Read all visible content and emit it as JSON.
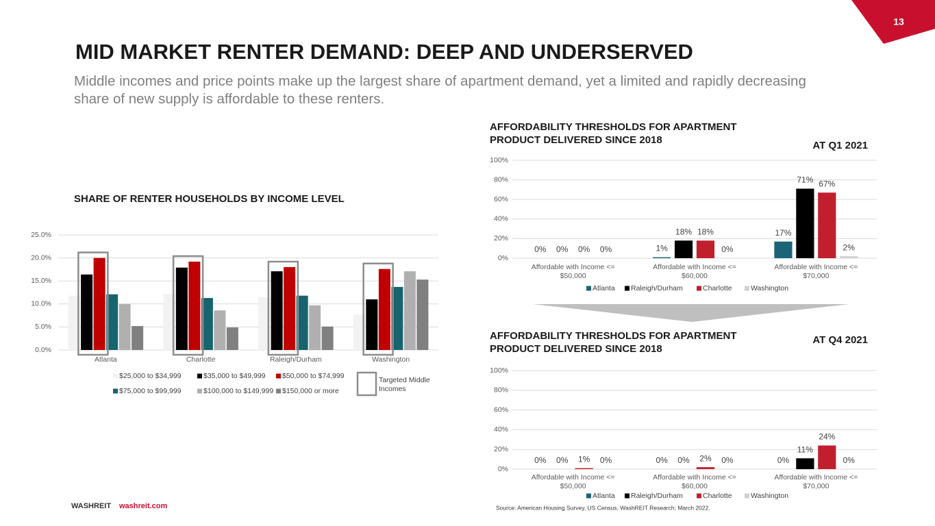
{
  "page_number": "13",
  "title": "MID MARKET RENTER DEMAND: DEEP AND UNDERSERVED",
  "subtitle": "Middle incomes and price points make up the largest share of apartment demand, yet a limited and rapidly decreasing share of new supply is affordable to these renters.",
  "footer": {
    "brand": "WASHREIT",
    "url": "washreit.com"
  },
  "source": "Source: American Housing Survey, US Census, WashREIT Research; March 2022.",
  "chart_data": [
    {
      "type": "bar",
      "title": "SHARE OF RENTER HOUSEHOLDS BY INCOME LEVEL",
      "categories": [
        "Atlanta",
        "Charlotte",
        "Raleigh/Durham",
        "Washington"
      ],
      "series": [
        {
          "name": "$25,000 to $34,999",
          "color": "#f2f2f2",
          "values": [
            11.8,
            12.2,
            11.5,
            7.7
          ]
        },
        {
          "name": "$35,000 to $49,999",
          "color": "#000000",
          "values": [
            16.4,
            17.9,
            17.1,
            11.0
          ]
        },
        {
          "name": "$50,000 to $74,999",
          "color": "#c00000",
          "values": [
            20.0,
            19.2,
            18.0,
            17.6
          ]
        },
        {
          "name": "$75,000 to $99,999",
          "color": "#17646e",
          "values": [
            12.1,
            11.3,
            11.8,
            13.7
          ]
        },
        {
          "name": "$100,000 to $149,999",
          "color": "#b0b0b0",
          "values": [
            10.0,
            8.6,
            9.7,
            17.1
          ]
        },
        {
          "name": "$150,000 or more",
          "color": "#808080",
          "values": [
            5.2,
            4.9,
            5.1,
            15.3
          ]
        }
      ],
      "highlight_label": "Targeted Middle Incomes",
      "ylim": [
        0,
        25
      ],
      "yticks": [
        {
          "value": 0,
          "label": "0.0%"
        },
        {
          "value": 5,
          "label": "5.0%"
        },
        {
          "value": 10,
          "label": "10.0%"
        },
        {
          "value": 15,
          "label": "15.0%"
        },
        {
          "value": 20,
          "label": "20.0%"
        },
        {
          "value": 25,
          "label": "25.0%"
        }
      ],
      "grid": true
    },
    {
      "type": "bar",
      "title": "AFFORDABILITY THRESHOLDS FOR APARTMENT PRODUCT DELIVERED SINCE 2018",
      "period": "AT Q1 2021",
      "categories": [
        "Affordable with Income <= $50,000",
        "Affordable with Income <= $60,000",
        "Affordable with Income <= $70,000"
      ],
      "series": [
        {
          "name": "Atlanta",
          "color": "#1b6478",
          "values": [
            0,
            1,
            17
          ],
          "value_labels": [
            "0%",
            "1%",
            "17%"
          ]
        },
        {
          "name": "Raleigh/Durham",
          "color": "#000000",
          "values": [
            0,
            18,
            71
          ],
          "value_labels": [
            "0%",
            "18%",
            "71%"
          ]
        },
        {
          "name": "Charlotte",
          "color": "#c0202e",
          "values": [
            0,
            18,
            67
          ],
          "value_labels": [
            "0%",
            "18%",
            "67%"
          ]
        },
        {
          "name": "Washington",
          "color": "#d0d0d0",
          "values": [
            0,
            0,
            2
          ],
          "value_labels": [
            "0%",
            "0%",
            "2%"
          ]
        }
      ],
      "ylim": [
        0,
        100
      ],
      "yticks": [
        {
          "value": 0,
          "label": "0%"
        },
        {
          "value": 20,
          "label": "20%"
        },
        {
          "value": 40,
          "label": "40%"
        },
        {
          "value": 60,
          "label": "60%"
        },
        {
          "value": 80,
          "label": "80%"
        },
        {
          "value": 100,
          "label": "100%"
        }
      ],
      "grid": true
    },
    {
      "type": "bar",
      "title": "AFFORDABILITY THRESHOLDS FOR APARTMENT PRODUCT DELIVERED SINCE 2018",
      "period": "AT Q4 2021",
      "categories": [
        "Affordable with Income <= $50,000",
        "Affordable with Income <= $60,000",
        "Affordable with Income <= $70,000"
      ],
      "series": [
        {
          "name": "Atlanta",
          "color": "#1b6478",
          "values": [
            0,
            0,
            0
          ],
          "value_labels": [
            "0%",
            "0%",
            "0%"
          ]
        },
        {
          "name": "Raleigh/Durham",
          "color": "#000000",
          "values": [
            0,
            0,
            11
          ],
          "value_labels": [
            "0%",
            "0%",
            "11%"
          ]
        },
        {
          "name": "Charlotte",
          "color": "#c0202e",
          "values": [
            1,
            2,
            24
          ],
          "value_labels": [
            "1%",
            "2%",
            "24%"
          ]
        },
        {
          "name": "Washington",
          "color": "#d0d0d0",
          "values": [
            0,
            0,
            0
          ],
          "value_labels": [
            "0%",
            "0%",
            "0%"
          ]
        }
      ],
      "ylim": [
        0,
        100
      ],
      "yticks": [
        {
          "value": 0,
          "label": "0%"
        },
        {
          "value": 20,
          "label": "20%"
        },
        {
          "value": 40,
          "label": "40%"
        },
        {
          "value": 60,
          "label": "60%"
        },
        {
          "value": 80,
          "label": "80%"
        },
        {
          "value": 100,
          "label": "100%"
        }
      ],
      "grid": true
    }
  ]
}
